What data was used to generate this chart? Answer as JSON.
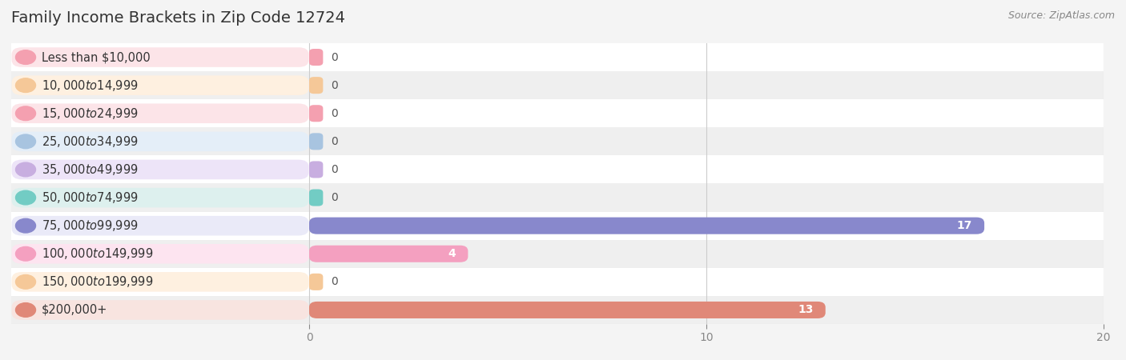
{
  "title": "Family Income Brackets in Zip Code 12724",
  "source_text": "Source: ZipAtlas.com",
  "categories": [
    "Less than $10,000",
    "$10,000 to $14,999",
    "$15,000 to $24,999",
    "$25,000 to $34,999",
    "$35,000 to $49,999",
    "$50,000 to $74,999",
    "$75,000 to $99,999",
    "$100,000 to $149,999",
    "$150,000 to $199,999",
    "$200,000+"
  ],
  "values": [
    0,
    0,
    0,
    0,
    0,
    0,
    17,
    4,
    0,
    13
  ],
  "bar_colors": [
    "#f4a0b0",
    "#f5c898",
    "#f4a0b0",
    "#a8c4e0",
    "#c8aee0",
    "#72ccc4",
    "#8888cc",
    "#f4a0c0",
    "#f5c898",
    "#e08878"
  ],
  "label_pill_colors": [
    "#fce4e8",
    "#fef0e0",
    "#fce4e8",
    "#e4eef8",
    "#ede4f8",
    "#ddf0ee",
    "#eaeaf8",
    "#fde4f0",
    "#fef0e0",
    "#f8e4e0"
  ],
  "xlim": [
    0,
    20
  ],
  "xticks": [
    0,
    10,
    20
  ],
  "value_label_color_inside": "#ffffff",
  "value_label_color_outside": "#555555",
  "background_color": "#f4f4f4",
  "row_bg_even": "#ffffff",
  "row_bg_odd": "#efefef",
  "title_fontsize": 14,
  "label_fontsize": 10.5,
  "value_fontsize": 10
}
